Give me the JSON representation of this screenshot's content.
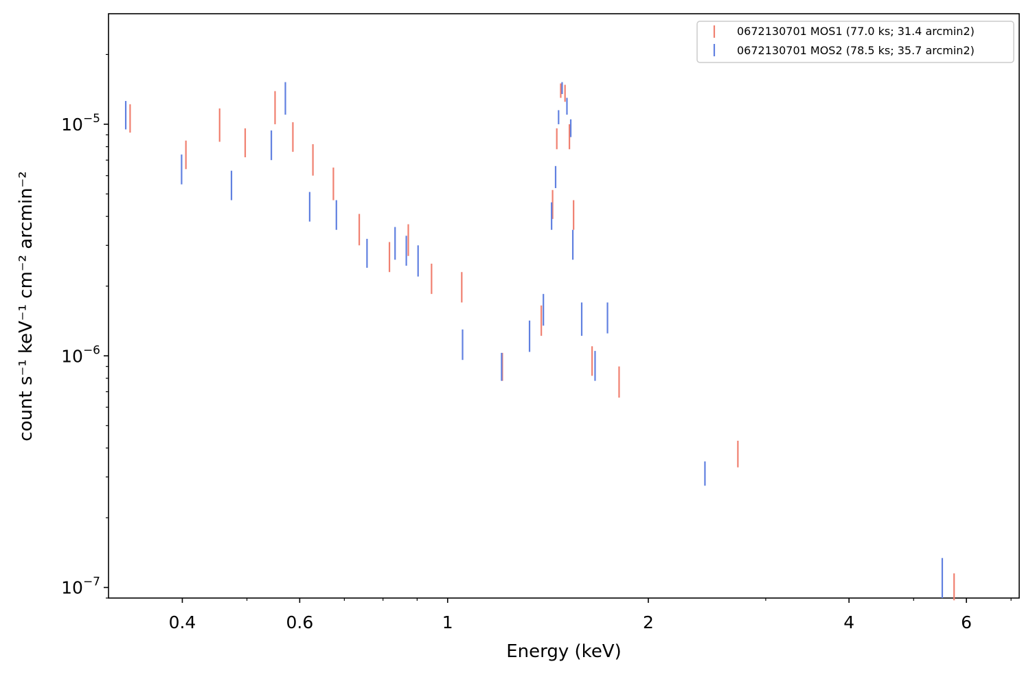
{
  "chart_data": {
    "type": "scatter",
    "subtype": "error-bars",
    "title": "",
    "xlabel": "Energy (keV)",
    "ylabel": "count s⁻¹ keV⁻¹ cm⁻² arcmin⁻²",
    "xscale": "log",
    "yscale": "log",
    "xlim": [
      0.31,
      7.2
    ],
    "ylim": [
      9e-08,
      3e-05
    ],
    "grid": false,
    "legend_position": "top-right",
    "x_tick_labels": [
      "0.4",
      "0.6",
      "1",
      "2",
      "4",
      "6"
    ],
    "x_tick_values": [
      0.4,
      0.6,
      1,
      2,
      4,
      6
    ],
    "y_tick_labels": [
      {
        "base": "10",
        "exp": "−5",
        "value": 1e-05
      },
      {
        "base": "10",
        "exp": "−6",
        "value": 1e-06
      },
      {
        "base": "10",
        "exp": "−7",
        "value": 1e-07
      }
    ],
    "series": [
      {
        "name": "0672130701 MOS1 (77.0 ks; 31.4 arcmin2)",
        "color": "#f08070",
        "points": [
          {
            "x": 0.334,
            "ylo": 9.2e-06,
            "yhi": 1.22e-05
          },
          {
            "x": 0.405,
            "ylo": 6.4e-06,
            "yhi": 8.5e-06
          },
          {
            "x": 0.455,
            "ylo": 8.4e-06,
            "yhi": 1.17e-05
          },
          {
            "x": 0.497,
            "ylo": 7.2e-06,
            "yhi": 9.6e-06
          },
          {
            "x": 0.551,
            "ylo": 1e-05,
            "yhi": 1.39e-05
          },
          {
            "x": 0.586,
            "ylo": 7.6e-06,
            "yhi": 1.02e-05
          },
          {
            "x": 0.628,
            "ylo": 6e-06,
            "yhi": 8.2e-06
          },
          {
            "x": 0.674,
            "ylo": 4.7e-06,
            "yhi": 6.5e-06
          },
          {
            "x": 0.737,
            "ylo": 3e-06,
            "yhi": 4.1e-06
          },
          {
            "x": 0.818,
            "ylo": 2.3e-06,
            "yhi": 3.1e-06
          },
          {
            "x": 0.873,
            "ylo": 2.7e-06,
            "yhi": 3.7e-06
          },
          {
            "x": 0.946,
            "ylo": 1.85e-06,
            "yhi": 2.5e-06
          },
          {
            "x": 1.05,
            "ylo": 1.7e-06,
            "yhi": 2.3e-06
          },
          {
            "x": 1.208,
            "ylo": 7.8e-07,
            "yhi": 1.03e-06
          },
          {
            "x": 1.382,
            "ylo": 1.22e-06,
            "yhi": 1.65e-06
          },
          {
            "x": 1.437,
            "ylo": 3.9e-06,
            "yhi": 5.2e-06
          },
          {
            "x": 1.458,
            "ylo": 7.8e-06,
            "yhi": 9.6e-06
          },
          {
            "x": 1.478,
            "ylo": 1.3e-05,
            "yhi": 1.5e-05
          },
          {
            "x": 1.5,
            "ylo": 1.25e-05,
            "yhi": 1.48e-05
          },
          {
            "x": 1.523,
            "ylo": 7.8e-06,
            "yhi": 1e-05
          },
          {
            "x": 1.545,
            "ylo": 3.5e-06,
            "yhi": 4.7e-06
          },
          {
            "x": 1.647,
            "ylo": 8.2e-07,
            "yhi": 1.1e-06
          },
          {
            "x": 1.808,
            "ylo": 6.6e-07,
            "yhi": 9e-07
          },
          {
            "x": 2.725,
            "ylo": 3.3e-07,
            "yhi": 4.3e-07
          },
          {
            "x": 5.75,
            "ylo": 8.8e-08,
            "yhi": 1.15e-07
          }
        ]
      },
      {
        "name": "0672130701 MOS2 (78.5 ks; 35.7 arcmin2)",
        "color": "#6080e0",
        "points": [
          {
            "x": 0.329,
            "ylo": 9.5e-06,
            "yhi": 1.26e-05
          },
          {
            "x": 0.399,
            "ylo": 5.5e-06,
            "yhi": 7.4e-06
          },
          {
            "x": 0.474,
            "ylo": 4.7e-06,
            "yhi": 6.3e-06
          },
          {
            "x": 0.544,
            "ylo": 7e-06,
            "yhi": 9.4e-06
          },
          {
            "x": 0.571,
            "ylo": 1.1e-05,
            "yhi": 1.52e-05
          },
          {
            "x": 0.621,
            "ylo": 3.8e-06,
            "yhi": 5.1e-06
          },
          {
            "x": 0.681,
            "ylo": 3.5e-06,
            "yhi": 4.7e-06
          },
          {
            "x": 0.757,
            "ylo": 2.4e-06,
            "yhi": 3.2e-06
          },
          {
            "x": 0.834,
            "ylo": 2.6e-06,
            "yhi": 3.6e-06
          },
          {
            "x": 0.867,
            "ylo": 2.45e-06,
            "yhi": 3.3e-06
          },
          {
            "x": 0.903,
            "ylo": 2.2e-06,
            "yhi": 3e-06
          },
          {
            "x": 1.053,
            "ylo": 9.6e-07,
            "yhi": 1.3e-06
          },
          {
            "x": 1.205,
            "ylo": 7.8e-07,
            "yhi": 1.03e-06
          },
          {
            "x": 1.327,
            "ylo": 1.04e-06,
            "yhi": 1.42e-06
          },
          {
            "x": 1.392,
            "ylo": 1.35e-06,
            "yhi": 1.85e-06
          },
          {
            "x": 1.432,
            "ylo": 3.5e-06,
            "yhi": 4.6e-06
          },
          {
            "x": 1.452,
            "ylo": 5.3e-06,
            "yhi": 6.6e-06
          },
          {
            "x": 1.467,
            "ylo": 1e-05,
            "yhi": 1.15e-05
          },
          {
            "x": 1.485,
            "ylo": 1.35e-05,
            "yhi": 1.52e-05
          },
          {
            "x": 1.51,
            "ylo": 1.1e-05,
            "yhi": 1.3e-05
          },
          {
            "x": 1.53,
            "ylo": 8.8e-06,
            "yhi": 1.05e-05
          },
          {
            "x": 1.541,
            "ylo": 2.6e-06,
            "yhi": 3.5e-06
          },
          {
            "x": 1.589,
            "ylo": 1.22e-06,
            "yhi": 1.7e-06
          },
          {
            "x": 1.664,
            "ylo": 7.8e-07,
            "yhi": 1.05e-06
          },
          {
            "x": 1.737,
            "ylo": 1.25e-06,
            "yhi": 1.7e-06
          },
          {
            "x": 2.432,
            "ylo": 2.75e-07,
            "yhi": 3.5e-07
          },
          {
            "x": 5.52,
            "ylo": 9e-08,
            "yhi": 1.34e-07
          }
        ]
      }
    ]
  }
}
